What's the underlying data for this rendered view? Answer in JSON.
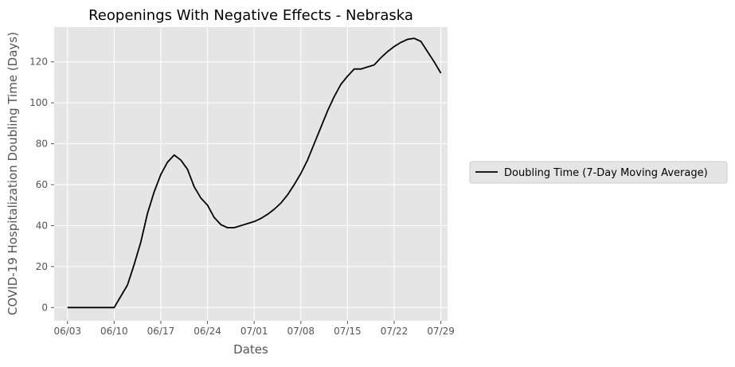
{
  "chart_data": {
    "type": "line",
    "title": "Reopenings With Negative Effects - Nebraska",
    "xlabel": "Dates",
    "ylabel": "COVID-19 Hospitalization Doubling Time (Days)",
    "x_tick_labels": [
      "06/03",
      "06/10",
      "06/17",
      "06/24",
      "07/01",
      "07/08",
      "07/15",
      "07/22",
      "07/29"
    ],
    "y_tick_labels": [
      "0",
      "20",
      "40",
      "60",
      "80",
      "100",
      "120"
    ],
    "xlim": [
      "2020-06-01",
      "2020-07-30"
    ],
    "ylim": [
      -6.5,
      137
    ],
    "grid": true,
    "legend_position": "outside-right",
    "background_color": "#e5e5e5",
    "grid_color": "#ffffff",
    "series": [
      {
        "name": "Doubling Time (7-Day Moving Average)",
        "color": "#000000",
        "x": [
          "2020-06-03",
          "2020-06-04",
          "2020-06-05",
          "2020-06-06",
          "2020-06-07",
          "2020-06-08",
          "2020-06-09",
          "2020-06-10",
          "2020-06-11",
          "2020-06-12",
          "2020-06-13",
          "2020-06-14",
          "2020-06-15",
          "2020-06-16",
          "2020-06-17",
          "2020-06-18",
          "2020-06-19",
          "2020-06-20",
          "2020-06-21",
          "2020-06-22",
          "2020-06-23",
          "2020-06-24",
          "2020-06-25",
          "2020-06-26",
          "2020-06-27",
          "2020-06-28",
          "2020-06-29",
          "2020-06-30",
          "2020-07-01",
          "2020-07-02",
          "2020-07-03",
          "2020-07-04",
          "2020-07-05",
          "2020-07-06",
          "2020-07-07",
          "2020-07-08",
          "2020-07-09",
          "2020-07-10",
          "2020-07-11",
          "2020-07-12",
          "2020-07-13",
          "2020-07-14",
          "2020-07-15",
          "2020-07-16",
          "2020-07-17",
          "2020-07-18",
          "2020-07-19",
          "2020-07-20",
          "2020-07-21",
          "2020-07-22",
          "2020-07-23",
          "2020-07-24",
          "2020-07-25",
          "2020-07-26",
          "2020-07-27",
          "2020-07-28",
          "2020-07-29"
        ],
        "y": [
          0,
          0,
          0,
          0,
          0,
          0,
          0,
          0,
          5.5,
          11,
          21,
          32,
          46,
          56.5,
          65,
          71,
          74.5,
          72,
          67.5,
          59,
          53.5,
          50,
          44,
          40.5,
          39,
          39,
          40,
          41,
          42,
          43.5,
          45.5,
          48,
          51,
          55,
          60,
          65.5,
          72,
          80,
          88,
          96,
          103,
          109,
          113,
          116.5,
          116.5,
          117.5,
          118.5,
          122,
          125,
          127.5,
          129.5,
          131,
          131.5,
          130,
          125,
          120,
          114.5
        ]
      }
    ]
  }
}
